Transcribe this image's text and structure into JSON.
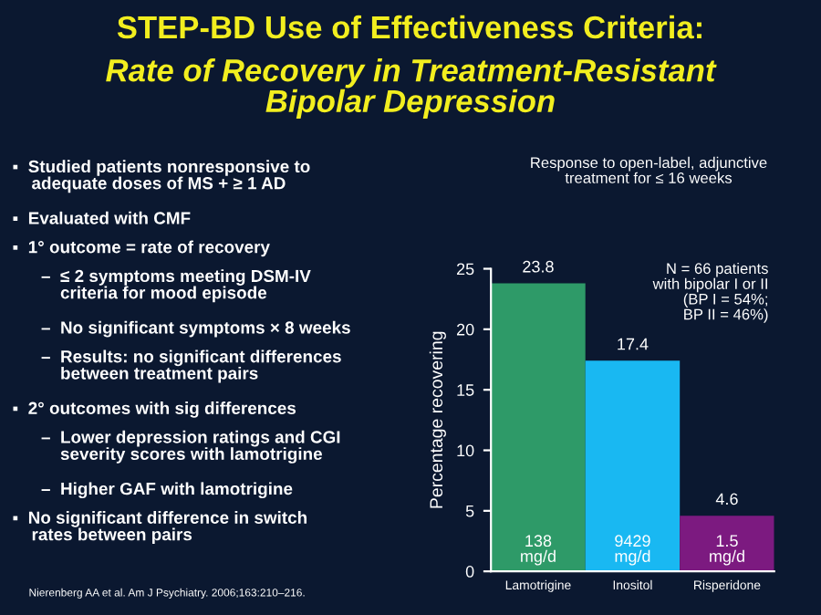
{
  "chart_data": {
    "type": "bar",
    "title": "STEP-BD Use of Effectiveness Criteria:",
    "subtitle": "Rate of Recovery in Treatment-Resistant\nBipolar Depression",
    "ylabel": "Percentage recovering",
    "categories": [
      "Lamotrigine",
      "Inositol",
      "Risperidone"
    ],
    "values": [
      23.8,
      17.4,
      4.6
    ],
    "colors": [
      "#2e9a68",
      "#19b8f2",
      "#7c1a80"
    ],
    "ylim": [
      0,
      25
    ],
    "yticks": [
      0,
      5,
      10,
      15,
      20,
      25
    ],
    "data_labels": true,
    "grid": false,
    "legend": false,
    "annotations": [
      "Response to open-label, adjunctive\ntreatment for ≤ 16 weeks",
      "N = 66 patients\nwith bipolar I or II\n(BP I = 54%;\nBP II = 46%)",
      "138\nmg/d",
      "9429\nmg/d",
      "1.5\nmg/d",
      "▪  Studied patients nonresponsive to\n    adequate doses of MS + ≥ 1 AD",
      "▪  Evaluated with CMF",
      "▪  1° outcome = rate of recovery",
      "      –  ≤ 2 symptoms meeting DSM-IV\n          criteria for mood episode",
      "      –  No significant symptoms × 8 weeks",
      "      –  Results: no significant differences\n          between treatment pairs",
      "▪  2° outcomes with sig differences",
      "      –  Lower depression ratings and CGI\n          severity scores with lamotrigine",
      "      –  Higher GAF with lamotrigine",
      "▪  No significant difference in switch\n    rates between pairs",
      "Nierenberg AA et al. Am J Psychiatry. 2006;163:210–216."
    ]
  }
}
